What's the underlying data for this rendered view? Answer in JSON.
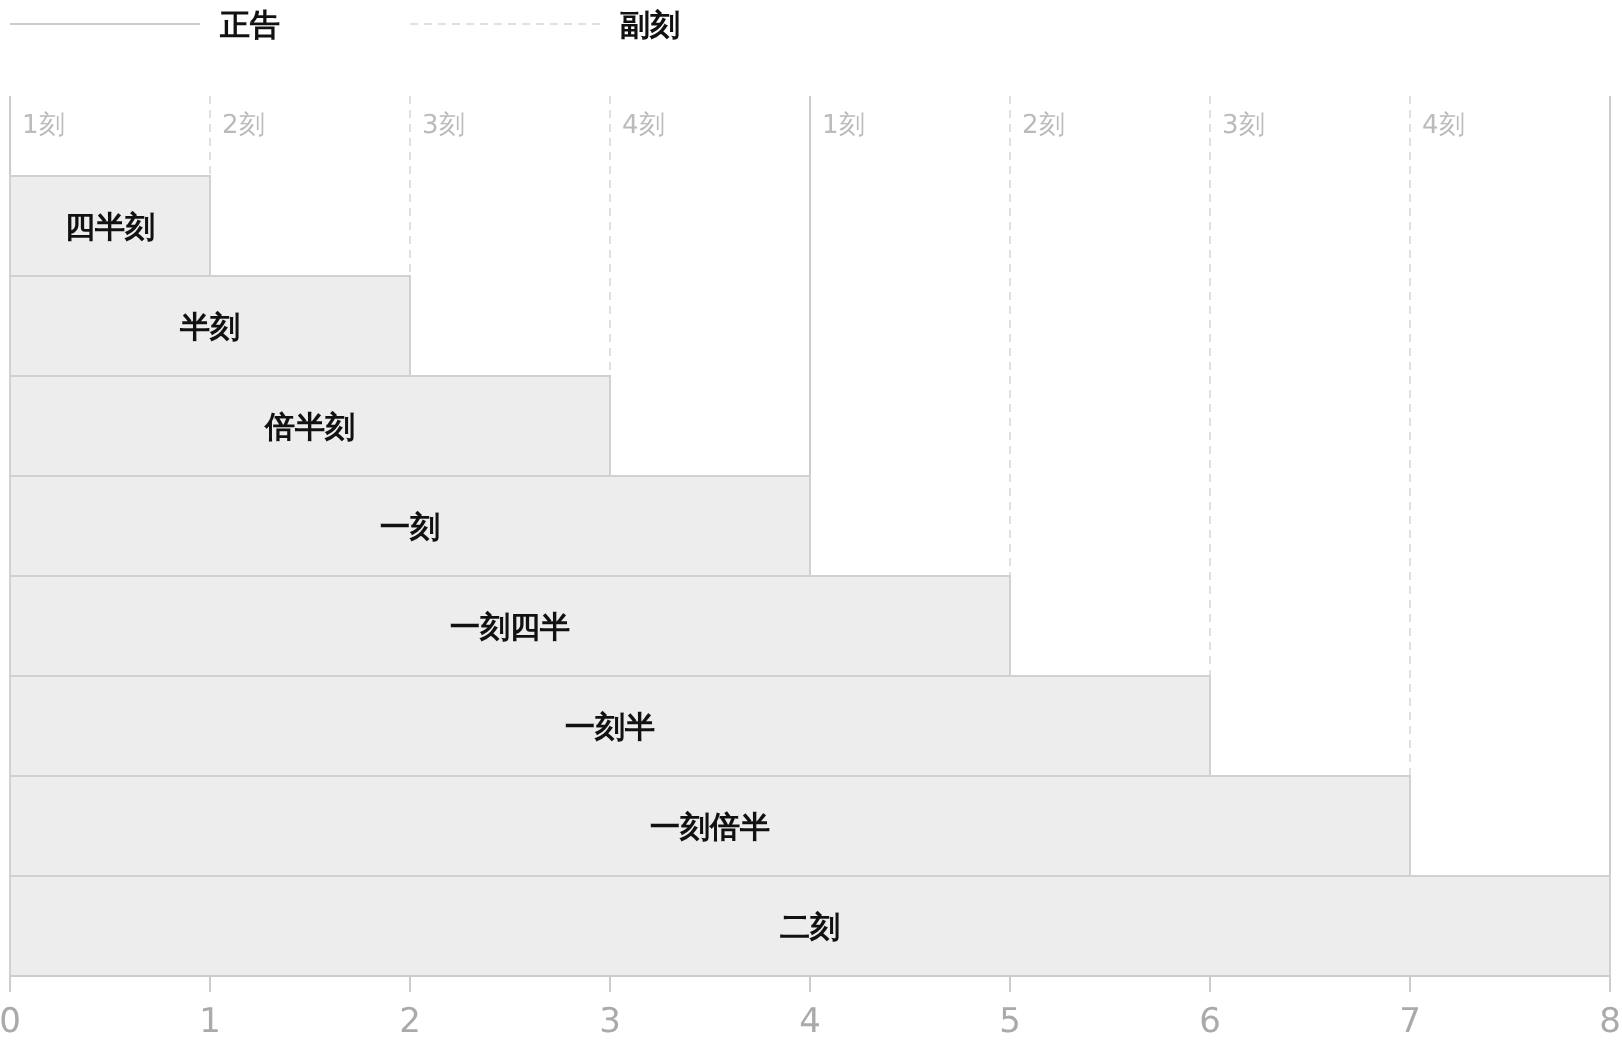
{
  "chart_data": {
    "type": "bar",
    "orientation": "horizontal",
    "categories": [
      "四半刻",
      "半刻",
      "倍半刻",
      "一刻",
      "一刻四半",
      "一刻半",
      "一刻倍半",
      "二刻"
    ],
    "values": [
      1,
      2,
      3,
      4,
      5,
      6,
      7,
      8
    ],
    "color": "#ededed",
    "xlim": [
      0,
      8
    ],
    "xticks": [
      0,
      1,
      2,
      3,
      4,
      5,
      6,
      7,
      8
    ],
    "ref_lines": [
      {
        "axis": "x",
        "value": 0,
        "label": "1刻",
        "line_style": "solid",
        "color": "#cccccc"
      },
      {
        "axis": "x",
        "value": 1,
        "label": "2刻",
        "line_style": "dashed",
        "color": "#e0e0e0"
      },
      {
        "axis": "x",
        "value": 2,
        "label": "3刻",
        "line_style": "dashed",
        "color": "#e0e0e0"
      },
      {
        "axis": "x",
        "value": 3,
        "label": "4刻",
        "line_style": "dashed",
        "color": "#e0e0e0"
      },
      {
        "axis": "x",
        "value": 4,
        "label": "1刻",
        "line_style": "solid",
        "color": "#cccccc"
      },
      {
        "axis": "x",
        "value": 5,
        "label": "2刻",
        "line_style": "dashed",
        "color": "#e0e0e0"
      },
      {
        "axis": "x",
        "value": 6,
        "label": "3刻",
        "line_style": "dashed",
        "color": "#e0e0e0"
      },
      {
        "axis": "x",
        "value": 7,
        "label": "4刻",
        "line_style": "dashed",
        "color": "#e0e0e0"
      },
      {
        "axis": "x",
        "value": 8,
        "line_style": "solid",
        "color": "#cccccc"
      }
    ],
    "annotations": [
      "正告",
      "副刻"
    ],
    "legend": "top left"
  }
}
